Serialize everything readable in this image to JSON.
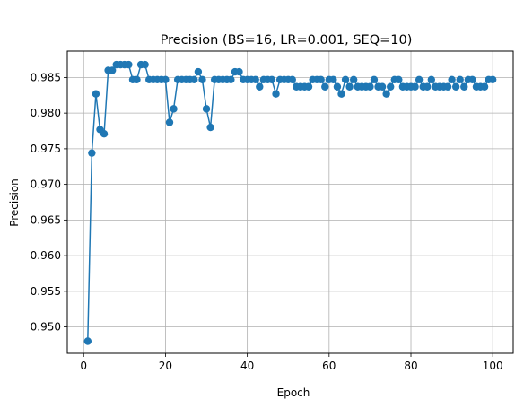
{
  "chart_data": {
    "type": "line",
    "title": "Precision (BS=16, LR=0.001, SEQ=10)",
    "xlabel": "Epoch",
    "ylabel": "Precision",
    "xlim": [
      -4,
      105
    ],
    "ylim": [
      0.9463,
      0.9887
    ],
    "grid": true,
    "marker": "circle",
    "color": "#1f77b4",
    "x_ticks": [
      0,
      20,
      40,
      60,
      80,
      100
    ],
    "y_ticks": [
      0.95,
      0.955,
      0.96,
      0.965,
      0.97,
      0.975,
      0.98,
      0.985
    ],
    "y_tick_labels": [
      "0.950",
      "0.955",
      "0.960",
      "0.965",
      "0.970",
      "0.975",
      "0.980",
      "0.985"
    ],
    "series": [
      {
        "x": [
          1,
          2,
          3,
          4,
          5,
          6,
          7,
          8,
          9,
          10,
          11,
          12,
          13,
          14,
          15,
          16,
          17,
          18,
          19,
          20,
          21,
          22,
          23,
          24,
          25,
          26,
          27,
          28,
          29,
          30,
          31,
          32,
          33,
          34,
          35,
          36,
          37,
          38,
          39,
          40,
          41,
          42,
          43,
          44,
          45,
          46,
          47,
          48,
          49,
          50,
          51,
          52,
          53,
          54,
          55,
          56,
          57,
          58,
          59,
          60,
          61,
          62,
          63,
          64,
          65,
          66,
          67,
          68,
          69,
          70,
          71,
          72,
          73,
          74,
          75,
          76,
          77,
          78,
          79,
          80,
          81,
          82,
          83,
          84,
          85,
          86,
          87,
          88,
          89,
          90,
          91,
          92,
          93,
          94,
          95,
          96,
          97,
          98,
          99,
          100
        ],
        "values": [
          0.948,
          0.9744,
          0.9827,
          0.9777,
          0.9771,
          0.986,
          0.986,
          0.9868,
          0.9868,
          0.9868,
          0.9868,
          0.9847,
          0.9847,
          0.9868,
          0.9868,
          0.9847,
          0.9847,
          0.9847,
          0.9847,
          0.9847,
          0.9787,
          0.9806,
          0.9847,
          0.9847,
          0.9847,
          0.9847,
          0.9847,
          0.9858,
          0.9847,
          0.9806,
          0.978,
          0.9847,
          0.9847,
          0.9847,
          0.9847,
          0.9847,
          0.9858,
          0.9858,
          0.9847,
          0.9847,
          0.9847,
          0.9847,
          0.9837,
          0.9847,
          0.9847,
          0.9847,
          0.9827,
          0.9847,
          0.9847,
          0.9847,
          0.9847,
          0.9837,
          0.9837,
          0.9837,
          0.9837,
          0.9847,
          0.9847,
          0.9847,
          0.9837,
          0.9847,
          0.9847,
          0.9837,
          0.9827,
          0.9847,
          0.9837,
          0.9847,
          0.9837,
          0.9837,
          0.9837,
          0.9837,
          0.9847,
          0.9837,
          0.9837,
          0.9827,
          0.9837,
          0.9847,
          0.9847,
          0.9837,
          0.9837,
          0.9837,
          0.9837,
          0.9847,
          0.9837,
          0.9837,
          0.9847,
          0.9837,
          0.9837,
          0.9837,
          0.9837,
          0.9847,
          0.9837,
          0.9847,
          0.9837,
          0.9847,
          0.9847,
          0.9837,
          0.9837,
          0.9837,
          0.9847,
          0.9847
        ]
      }
    ]
  }
}
